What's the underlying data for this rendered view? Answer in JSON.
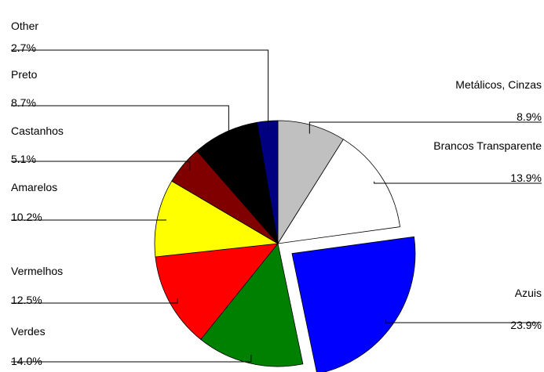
{
  "chart_data": {
    "type": "pie",
    "title": "",
    "slices": [
      {
        "label": "Metálicos, Cinzas",
        "value": 8.9,
        "display": "8.9%",
        "color": "#c0c0c0",
        "exploded": false
      },
      {
        "label": "Brancos Transparente",
        "value": 13.9,
        "display": "13.9%",
        "color": "#ffffff",
        "exploded": false
      },
      {
        "label": "Azuis",
        "value": 23.9,
        "display": "23.9%",
        "color": "#0000ff",
        "exploded": true
      },
      {
        "label": "Verdes",
        "value": 14.0,
        "display": "14.0%",
        "color": "#008000",
        "exploded": false
      },
      {
        "label": "Vermelhos",
        "value": 12.5,
        "display": "12.5%",
        "color": "#ff0000",
        "exploded": false
      },
      {
        "label": "Amarelos",
        "value": 10.2,
        "display": "10.2%",
        "color": "#ffff00",
        "exploded": false
      },
      {
        "label": "Castanhos",
        "value": 5.1,
        "display": "5.1%",
        "color": "#800000",
        "exploded": false
      },
      {
        "label": "Preto",
        "value": 8.7,
        "display": "8.7%",
        "color": "#000000",
        "exploded": false
      },
      {
        "label": "Other",
        "value": 2.7,
        "display": "2.7%",
        "color": "#000080",
        "exploded": false
      }
    ],
    "start_angle_deg": 0,
    "direction": "clockwise",
    "legend": "none",
    "labels": "leader-lines"
  }
}
